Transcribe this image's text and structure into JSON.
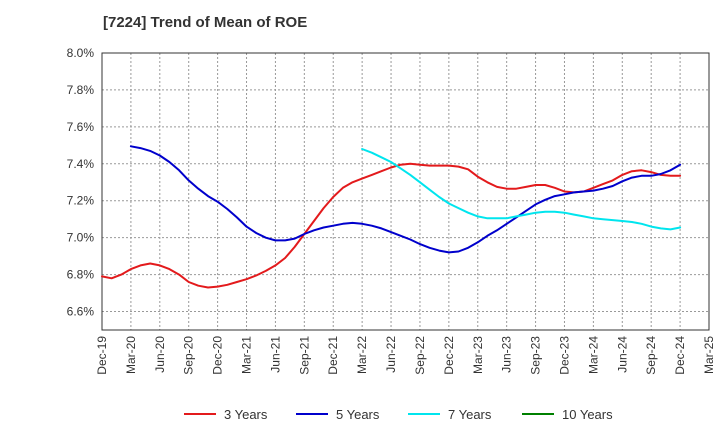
{
  "chart_data": {
    "type": "line",
    "title": "[7224]  Trend of Mean of ROE",
    "xlabel": "",
    "ylabel": "",
    "x_ticks": [
      "Dec-19",
      "Mar-20",
      "Jun-20",
      "Sep-20",
      "Dec-20",
      "Mar-21",
      "Jun-21",
      "Sep-21",
      "Dec-21",
      "Mar-22",
      "Jun-22",
      "Sep-22",
      "Dec-22",
      "Mar-23",
      "Jun-23",
      "Sep-23",
      "Dec-23",
      "Mar-24",
      "Jun-24",
      "Sep-24",
      "Dec-24",
      "Mar-25"
    ],
    "y_ticks": [
      "6.6%",
      "6.8%",
      "7.0%",
      "7.2%",
      "7.4%",
      "7.6%",
      "7.8%",
      "8.0%"
    ],
    "ylim": [
      6.5,
      8.0
    ],
    "y_unit": "%",
    "grid": true,
    "legend_position": "bottom",
    "series": [
      {
        "name": "3 Years",
        "color": "#e31a1c",
        "x": [
          "Dec-19",
          "Jan-20",
          "Feb-20",
          "Mar-20",
          "Apr-20",
          "May-20",
          "Jun-20",
          "Jul-20",
          "Aug-20",
          "Sep-20",
          "Oct-20",
          "Nov-20",
          "Dec-20",
          "Jan-21",
          "Feb-21",
          "Mar-21",
          "Apr-21",
          "May-21",
          "Jun-21",
          "Jul-21",
          "Aug-21",
          "Sep-21",
          "Oct-21",
          "Nov-21",
          "Dec-21",
          "Jan-22",
          "Feb-22",
          "Mar-22",
          "Apr-22",
          "May-22",
          "Jun-22",
          "Jul-22",
          "Aug-22",
          "Sep-22",
          "Oct-22",
          "Nov-22",
          "Dec-22",
          "Jan-23",
          "Feb-23",
          "Mar-23",
          "Apr-23",
          "May-23",
          "Jun-23",
          "Jul-23",
          "Aug-23",
          "Sep-23",
          "Oct-23",
          "Nov-23",
          "Dec-23",
          "Jan-24",
          "Feb-24",
          "Mar-24",
          "Apr-24",
          "May-24",
          "Jun-24",
          "Jul-24",
          "Aug-24",
          "Sep-24",
          "Oct-24",
          "Nov-24",
          "Dec-24"
        ],
        "values": [
          6.79,
          6.78,
          6.8,
          6.83,
          6.85,
          6.86,
          6.85,
          6.83,
          6.8,
          6.76,
          6.74,
          6.73,
          6.735,
          6.745,
          6.76,
          6.775,
          6.795,
          6.82,
          6.85,
          6.89,
          6.95,
          7.02,
          7.09,
          7.16,
          7.22,
          7.27,
          7.3,
          7.32,
          7.34,
          7.36,
          7.38,
          7.395,
          7.4,
          7.395,
          7.39,
          7.39,
          7.39,
          7.385,
          7.37,
          7.33,
          7.3,
          7.275,
          7.265,
          7.265,
          7.275,
          7.285,
          7.285,
          7.27,
          7.25,
          7.245,
          7.25,
          7.27,
          7.29,
          7.31,
          7.34,
          7.36,
          7.365,
          7.355,
          7.34,
          7.335,
          7.335
        ]
      },
      {
        "name": "5 Years",
        "color": "#0000cc",
        "x": [
          "Mar-20",
          "Apr-20",
          "May-20",
          "Jun-20",
          "Jul-20",
          "Aug-20",
          "Sep-20",
          "Oct-20",
          "Nov-20",
          "Dec-20",
          "Jan-21",
          "Feb-21",
          "Mar-21",
          "Apr-21",
          "May-21",
          "Jun-21",
          "Jul-21",
          "Aug-21",
          "Sep-21",
          "Oct-21",
          "Nov-21",
          "Dec-21",
          "Jan-22",
          "Feb-22",
          "Mar-22",
          "Apr-22",
          "May-22",
          "Jun-22",
          "Jul-22",
          "Aug-22",
          "Sep-22",
          "Oct-22",
          "Nov-22",
          "Dec-22",
          "Jan-23",
          "Feb-23",
          "Mar-23",
          "Apr-23",
          "May-23",
          "Jun-23",
          "Jul-23",
          "Aug-23",
          "Sep-23",
          "Oct-23",
          "Nov-23",
          "Dec-23",
          "Jan-24",
          "Feb-24",
          "Mar-24",
          "Apr-24",
          "May-24",
          "Jun-24",
          "Jul-24",
          "Aug-24",
          "Sep-24",
          "Oct-24",
          "Nov-24",
          "Dec-24"
        ],
        "values": [
          7.495,
          7.485,
          7.47,
          7.445,
          7.41,
          7.365,
          7.31,
          7.265,
          7.225,
          7.195,
          7.155,
          7.11,
          7.06,
          7.025,
          7.0,
          6.985,
          6.985,
          6.995,
          7.02,
          7.04,
          7.055,
          7.065,
          7.075,
          7.08,
          7.075,
          7.065,
          7.05,
          7.03,
          7.01,
          6.99,
          6.965,
          6.945,
          6.93,
          6.92,
          6.925,
          6.945,
          6.975,
          7.01,
          7.04,
          7.075,
          7.11,
          7.145,
          7.18,
          7.205,
          7.225,
          7.235,
          7.245,
          7.25,
          7.255,
          7.265,
          7.28,
          7.305,
          7.325,
          7.335,
          7.335,
          7.345,
          7.365,
          7.395
        ]
      },
      {
        "name": "7 Years",
        "color": "#00e5ee",
        "x": [
          "Mar-22",
          "Apr-22",
          "May-22",
          "Jun-22",
          "Jul-22",
          "Aug-22",
          "Sep-22",
          "Oct-22",
          "Nov-22",
          "Dec-22",
          "Jan-23",
          "Feb-23",
          "Mar-23",
          "Apr-23",
          "May-23",
          "Jun-23",
          "Jul-23",
          "Aug-23",
          "Sep-23",
          "Oct-23",
          "Nov-23",
          "Dec-23",
          "Jan-24",
          "Feb-24",
          "Mar-24",
          "Apr-24",
          "May-24",
          "Jun-24",
          "Jul-24",
          "Aug-24",
          "Sep-24",
          "Oct-24",
          "Nov-24",
          "Dec-24"
        ],
        "values": [
          7.48,
          7.46,
          7.435,
          7.41,
          7.375,
          7.34,
          7.3,
          7.26,
          7.22,
          7.185,
          7.16,
          7.135,
          7.115,
          7.105,
          7.105,
          7.105,
          7.115,
          7.125,
          7.135,
          7.14,
          7.14,
          7.135,
          7.125,
          7.115,
          7.105,
          7.1,
          7.095,
          7.09,
          7.085,
          7.075,
          7.06,
          7.05,
          7.045,
          7.055
        ]
      },
      {
        "name": "10 Years",
        "color": "#008000",
        "x": [],
        "values": []
      }
    ]
  }
}
